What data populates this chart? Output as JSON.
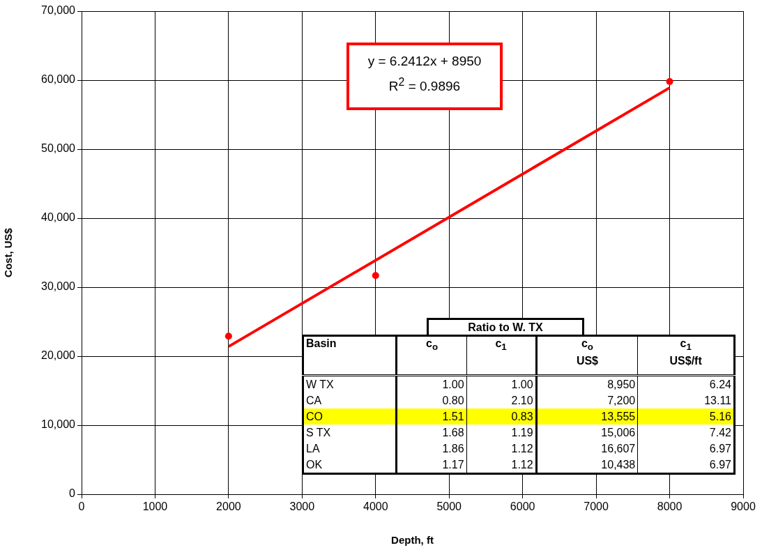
{
  "chart_data": {
    "type": "scatter",
    "xlabel": "Depth, ft",
    "ylabel": "Cost, US$",
    "xlim": [
      0,
      9000
    ],
    "xticks": [
      0,
      1000,
      2000,
      3000,
      4000,
      5000,
      6000,
      7000,
      8000,
      9000
    ],
    "ylim": [
      0,
      70000
    ],
    "yticks": [
      {
        "value": 0,
        "label": "0"
      },
      {
        "value": 10000,
        "label": "10,000"
      },
      {
        "value": 20000,
        "label": "20,000"
      },
      {
        "value": 30000,
        "label": "30,000"
      },
      {
        "value": 40000,
        "label": "40,000"
      },
      {
        "value": 50000,
        "label": "50,000"
      },
      {
        "value": 60000,
        "label": "60,000"
      },
      {
        "value": 70000,
        "label": "70,000"
      }
    ],
    "grid": true,
    "legend": false,
    "series": [
      {
        "type": "scatter",
        "color": "#ff0000",
        "marker": "circle",
        "x": [
          2000,
          4000,
          8000
        ],
        "values": [
          22900,
          31700,
          59800
        ]
      },
      {
        "type": "line",
        "color": "#ff0000",
        "marker": "none",
        "x": [
          2000,
          8000
        ],
        "values": [
          21400,
          58900
        ],
        "line_style": "solid"
      }
    ],
    "annotations": [
      "y = 6.2412x + 8950",
      "R$^{2}$ = 0.9896",
      "Ratio to W. TX",
      "Basin",
      "c$_{o}$",
      "c$_{1}$",
      "c$_{o}$\nUS$",
      "c$_{1}$\nUS$/ft",
      "W TX",
      "1.00",
      "1.00",
      "8,950",
      "6.24",
      "CA",
      "0.80",
      "2.10",
      "7,200",
      "13.11",
      "CO",
      "1.51",
      "0.83",
      "13,555",
      "5.16",
      "S TX",
      "1.68",
      "1.19",
      "15,006",
      "7.42",
      "LA",
      "1.86",
      "1.12",
      "16,607",
      "6.97",
      "OK",
      "1.17",
      "1.12",
      "10,438",
      "6.97"
    ]
  }
}
